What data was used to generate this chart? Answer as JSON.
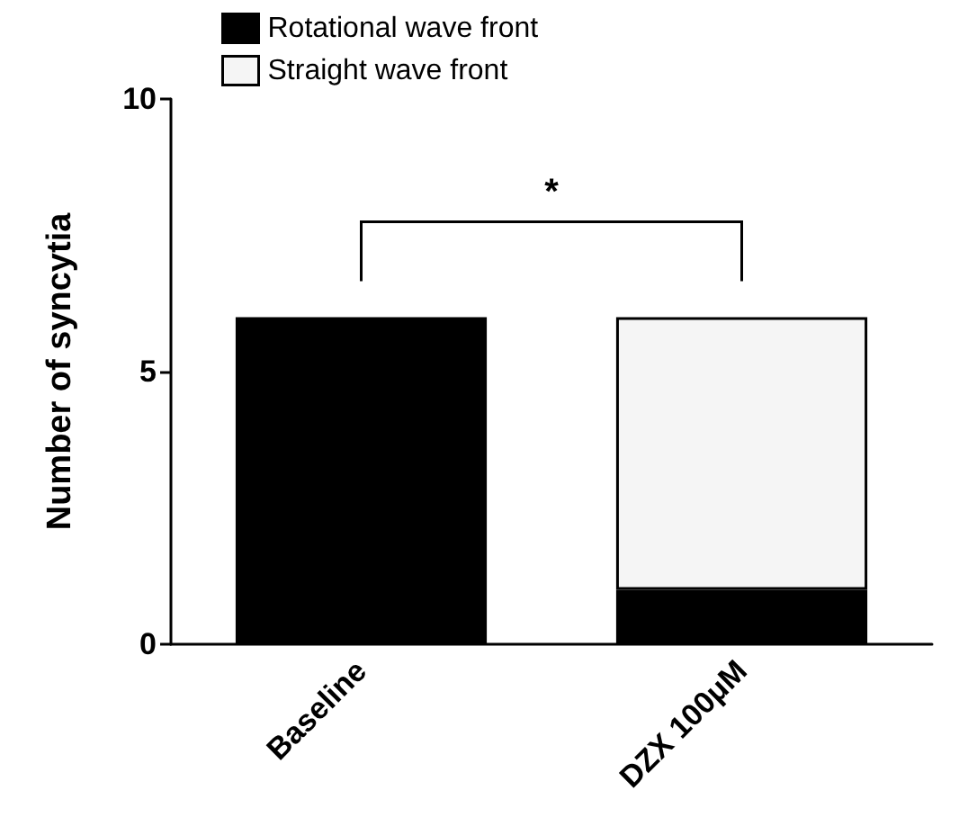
{
  "chart_data": {
    "type": "bar",
    "stacked": true,
    "ylabel": "Number of syncytia",
    "categories": [
      "Baseline",
      "DZX 100μM"
    ],
    "series": [
      {
        "name": "Rotational wave front",
        "color": "#000000",
        "values": [
          6,
          1
        ]
      },
      {
        "name": "Straight wave front",
        "color": "#f5f5f5",
        "values": [
          0,
          5
        ]
      }
    ],
    "ylim": [
      0,
      10
    ],
    "yticks": [
      0,
      5,
      10
    ],
    "grid": false,
    "legend": "top",
    "annotations": [
      "*"
    ]
  }
}
